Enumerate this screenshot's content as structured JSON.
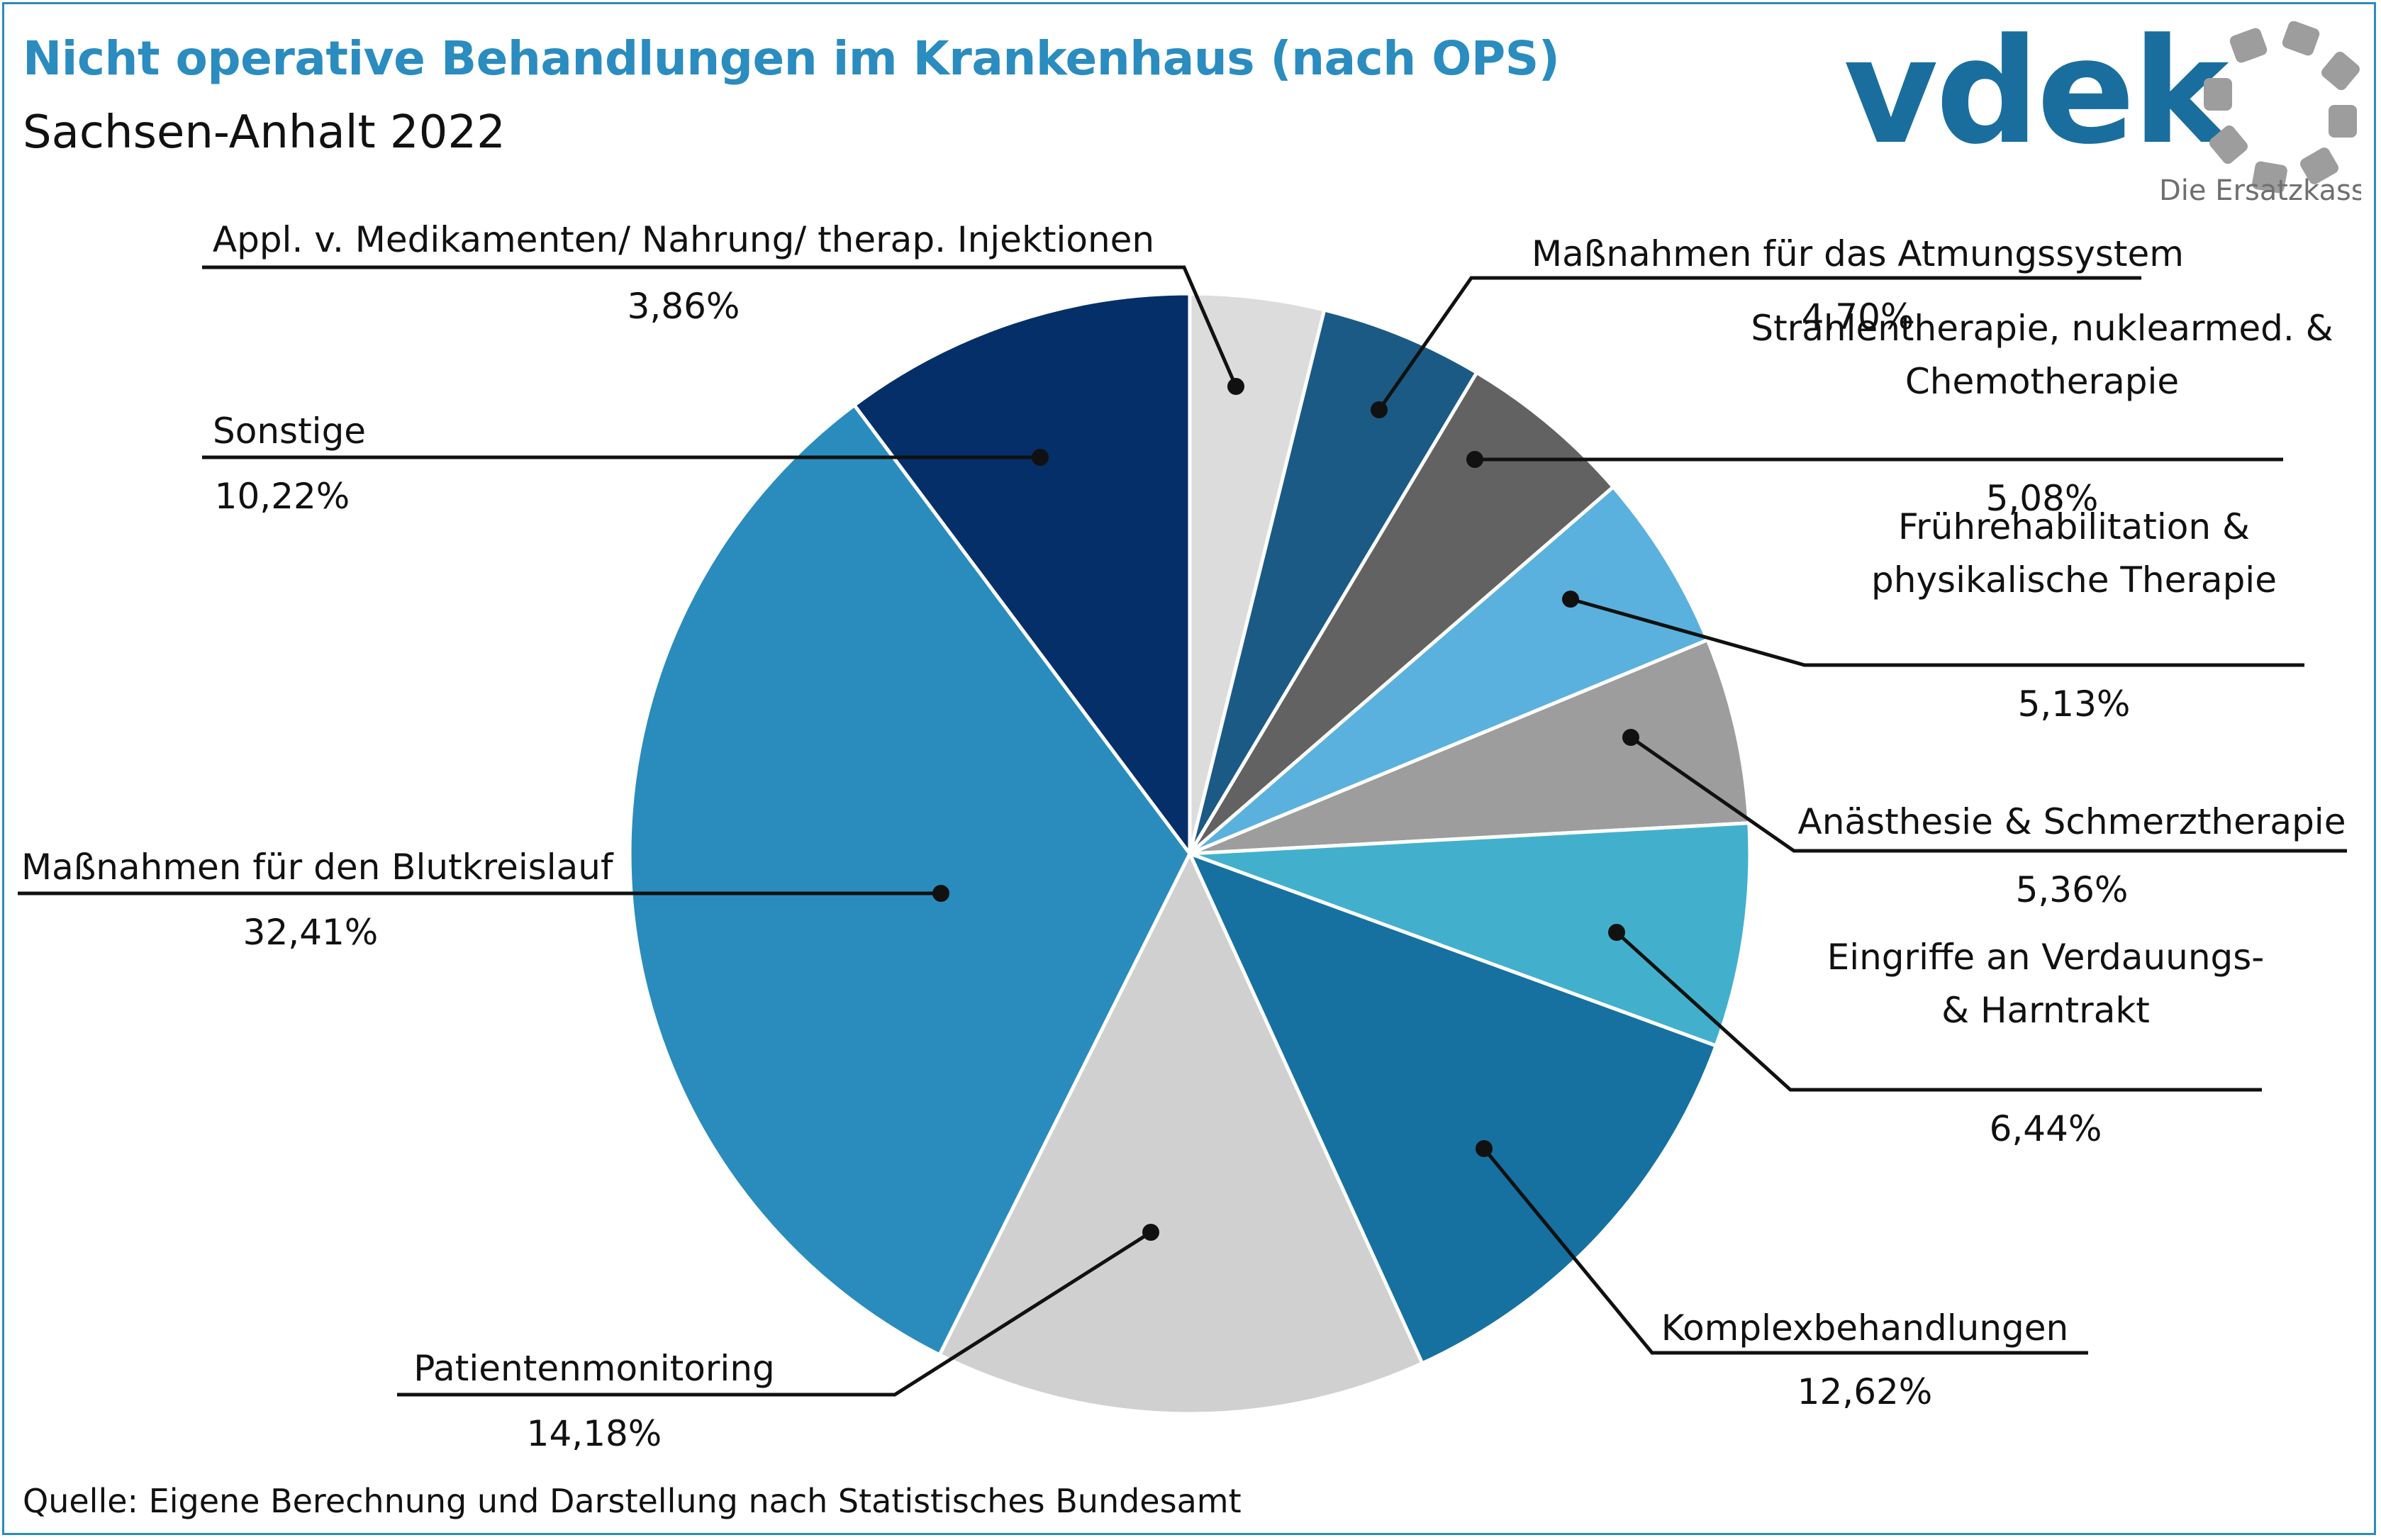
{
  "header": {
    "title": "Nicht operative Behandlungen im Krankenhaus (nach OPS)",
    "subtitle": "Sachsen-Anhalt 2022"
  },
  "footer": {
    "source": "Quelle: Eigene Berechnung und Darstellung nach Statistisches Bundesamt"
  },
  "logo": {
    "wordmark": "vdek",
    "tagline": "Die Ersatzkassen",
    "colors": {
      "wordmark": "#1a6e9e",
      "dots": "#9d9d9d",
      "tagline": "#6f6f6f"
    }
  },
  "chart_data": {
    "type": "pie",
    "title": "Nicht operative Behandlungen im Krankenhaus (nach OPS)",
    "subtitle": "Sachsen-Anhalt 2022",
    "start": "12 o'clock, clockwise",
    "slices": [
      {
        "label": [
          "Appl. v. Medikamenten/ Nahrung/ therap. Injektionen"
        ],
        "value": 3.86,
        "value_label": "3,86%",
        "color": "#dcdcdc"
      },
      {
        "label": [
          "Maßnahmen für das Atmungssystem"
        ],
        "value": 4.7,
        "value_label": "4,70%",
        "color": "#1b5a85"
      },
      {
        "label": [
          "Strahlentherapie, nuklearmed. &",
          "Chemotherapie"
        ],
        "value": 5.08,
        "value_label": "5,08%",
        "color": "#626262"
      },
      {
        "label": [
          "Frührehabilitation &",
          "physikalische Therapie"
        ],
        "value": 5.13,
        "value_label": "5,13%",
        "color": "#5bb1dd"
      },
      {
        "label": [
          "Anästhesie & Schmerztherapie"
        ],
        "value": 5.36,
        "value_label": "5,36%",
        "color": "#9d9d9d"
      },
      {
        "label": [
          "Eingriffe an Verdauungs-",
          "& Harntrakt"
        ],
        "value": 6.44,
        "value_label": "6,44%",
        "color": "#42b0cd"
      },
      {
        "label": [
          "Komplexbehandlungen"
        ],
        "value": 12.62,
        "value_label": "12,62%",
        "color": "#1671a0"
      },
      {
        "label": [
          "Patientenmonitoring"
        ],
        "value": 14.18,
        "value_label": "14,18%",
        "color": "#d0d0d0"
      },
      {
        "label": [
          "Maßnahmen für den Blutkreislauf"
        ],
        "value": 32.41,
        "value_label": "32,41%",
        "color": "#2a8cbc"
      },
      {
        "label": [
          "Sonstige"
        ],
        "value": 10.22,
        "value_label": "10,22%",
        "color": "#042f68"
      }
    ]
  }
}
